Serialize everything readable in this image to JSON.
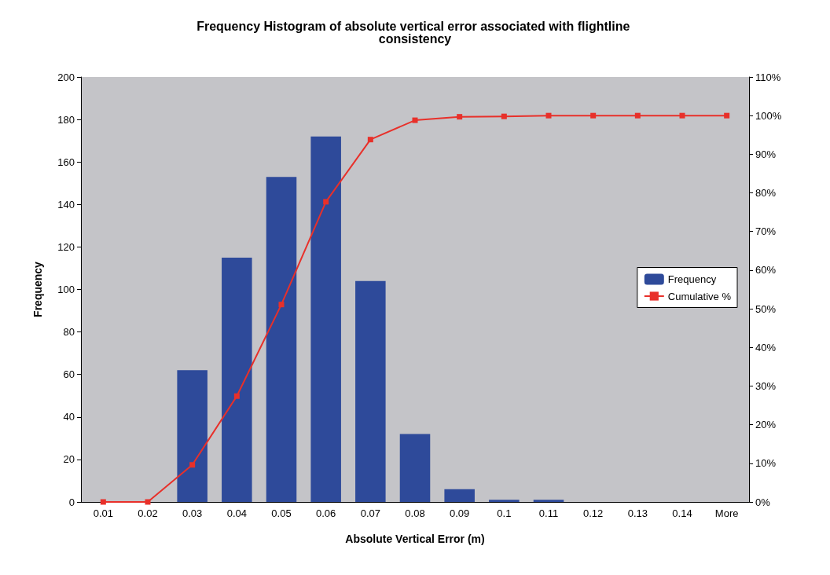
{
  "chart_data": {
    "type": "bar",
    "title": "Frequency Histogram of absolute vertical error associated with flightline consistency",
    "xlabel": "Absolute Vertical Error (m)",
    "ylabel": "Frequency",
    "categories": [
      "0.01",
      "0.02",
      "0.03",
      "0.04",
      "0.05",
      "0.06",
      "0.07",
      "0.08",
      "0.09",
      "0.1",
      "0.11",
      "0.12",
      "0.13",
      "0.14",
      "More"
    ],
    "series": [
      {
        "name": "Frequency",
        "color": "#2e4a9a",
        "values": [
          0,
          0,
          62,
          115,
          153,
          172,
          104,
          32,
          6,
          1,
          1,
          0,
          0,
          0,
          0
        ]
      },
      {
        "name": "Cumulative %",
        "type": "line",
        "axis": "y2",
        "color": "#e8302a",
        "values": [
          0,
          0,
          9.6,
          27.4,
          51.1,
          77.7,
          93.8,
          98.8,
          99.7,
          99.8,
          100,
          100,
          100,
          100,
          100
        ]
      }
    ],
    "ylim": [
      0,
      200
    ],
    "yticks": [
      0,
      20,
      40,
      60,
      80,
      100,
      120,
      140,
      160,
      180,
      200
    ],
    "y2lim": [
      0,
      110
    ],
    "y2ticks": [
      {
        "value": 0,
        "label": "0%"
      },
      {
        "value": 10,
        "label": "10%"
      },
      {
        "value": 20,
        "label": "20%"
      },
      {
        "value": 30,
        "label": "30%"
      },
      {
        "value": 40,
        "label": "40%"
      },
      {
        "value": 50,
        "label": "50%"
      },
      {
        "value": 60,
        "label": "60%"
      },
      {
        "value": 70,
        "label": "70%"
      },
      {
        "value": 80,
        "label": "80%"
      },
      {
        "value": 90,
        "label": "90%"
      },
      {
        "value": 100,
        "label": "100%"
      },
      {
        "value": 110,
        "label": "110%"
      }
    ],
    "marker": "square",
    "legend": "right",
    "grid": false
  }
}
